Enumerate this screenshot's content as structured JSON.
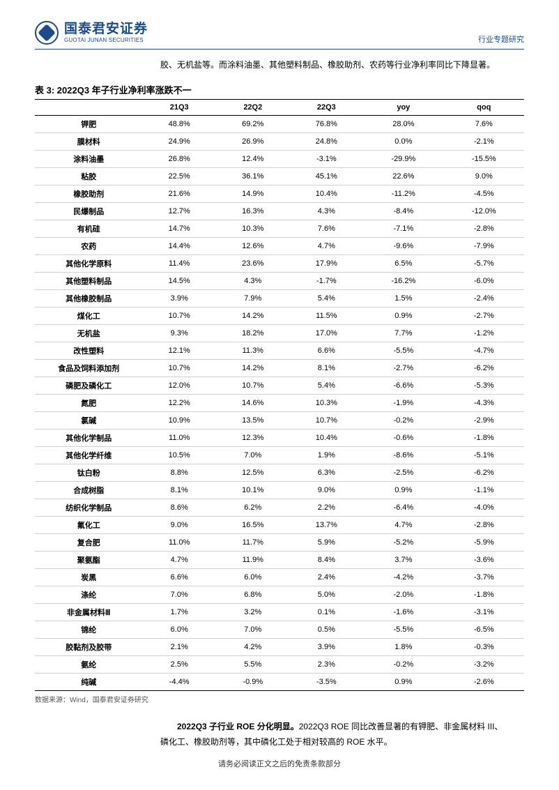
{
  "header": {
    "logo_cn": "国泰君安证券",
    "logo_en": "GUOTAI JUNAN SECURITIES",
    "doc_type": "行业专题研究"
  },
  "intro": "胶、无机盐等。而涂料油墨、其他塑料制品、橡胶助剂、农药等行业净利率同比下降显著。",
  "table": {
    "title": "表 3:  2022Q3 年子行业净利率涨跌不一",
    "columns": [
      "",
      "21Q3",
      "22Q2",
      "22Q3",
      "yoy",
      "qoq"
    ],
    "rows": [
      [
        "钾肥",
        "48.8%",
        "69.2%",
        "76.8%",
        "28.0%",
        "7.6%"
      ],
      [
        "膜材料",
        "24.9%",
        "26.9%",
        "24.8%",
        "0.0%",
        "-2.1%"
      ],
      [
        "涂料油墨",
        "26.8%",
        "12.4%",
        "-3.1%",
        "-29.9%",
        "-15.5%"
      ],
      [
        "粘胶",
        "22.5%",
        "36.1%",
        "45.1%",
        "22.6%",
        "9.0%"
      ],
      [
        "橡胶助剂",
        "21.6%",
        "14.9%",
        "10.4%",
        "-11.2%",
        "-4.5%"
      ],
      [
        "民爆制品",
        "12.7%",
        "16.3%",
        "4.3%",
        "-8.4%",
        "-12.0%"
      ],
      [
        "有机硅",
        "14.7%",
        "10.3%",
        "7.6%",
        "-7.1%",
        "-2.8%"
      ],
      [
        "农药",
        "14.4%",
        "12.6%",
        "4.7%",
        "-9.6%",
        "-7.9%"
      ],
      [
        "其他化学原料",
        "11.4%",
        "23.6%",
        "17.9%",
        "6.5%",
        "-5.7%"
      ],
      [
        "其他塑料制品",
        "14.5%",
        "4.3%",
        "-1.7%",
        "-16.2%",
        "-6.0%"
      ],
      [
        "其他橡胶制品",
        "3.9%",
        "7.9%",
        "5.4%",
        "1.5%",
        "-2.4%"
      ],
      [
        "煤化工",
        "10.7%",
        "14.2%",
        "11.5%",
        "0.9%",
        "-2.7%"
      ],
      [
        "无机盐",
        "9.3%",
        "18.2%",
        "17.0%",
        "7.7%",
        "-1.2%"
      ],
      [
        "改性塑料",
        "12.1%",
        "11.3%",
        "6.6%",
        "-5.5%",
        "-4.7%"
      ],
      [
        "食品及饲料添加剂",
        "10.7%",
        "14.2%",
        "8.1%",
        "-2.7%",
        "-6.2%"
      ],
      [
        "磷肥及磷化工",
        "12.0%",
        "10.7%",
        "5.4%",
        "-6.6%",
        "-5.3%"
      ],
      [
        "氮肥",
        "12.2%",
        "14.6%",
        "10.3%",
        "-1.9%",
        "-4.3%"
      ],
      [
        "氯碱",
        "10.9%",
        "13.5%",
        "10.7%",
        "-0.2%",
        "-2.9%"
      ],
      [
        "其他化学制品",
        "11.0%",
        "12.3%",
        "10.4%",
        "-0.6%",
        "-1.8%"
      ],
      [
        "其他化学纤维",
        "10.5%",
        "7.0%",
        "1.9%",
        "-8.6%",
        "-5.1%"
      ],
      [
        "钛白粉",
        "8.8%",
        "12.5%",
        "6.3%",
        "-2.5%",
        "-6.2%"
      ],
      [
        "合成树脂",
        "8.1%",
        "10.1%",
        "9.0%",
        "0.9%",
        "-1.1%"
      ],
      [
        "纺织化学制品",
        "8.6%",
        "6.2%",
        "2.2%",
        "-6.4%",
        "-4.0%"
      ],
      [
        "氟化工",
        "9.0%",
        "16.5%",
        "13.7%",
        "4.7%",
        "-2.8%"
      ],
      [
        "复合肥",
        "11.0%",
        "11.7%",
        "5.9%",
        "-5.2%",
        "-5.9%"
      ],
      [
        "聚氨酯",
        "4.7%",
        "11.9%",
        "8.4%",
        "3.7%",
        "-3.6%"
      ],
      [
        "炭黑",
        "6.6%",
        "6.0%",
        "2.4%",
        "-4.2%",
        "-3.7%"
      ],
      [
        "涤纶",
        "7.0%",
        "6.8%",
        "5.0%",
        "-2.0%",
        "-1.8%"
      ],
      [
        "非金属材料Ⅲ",
        "1.7%",
        "3.2%",
        "0.1%",
        "-1.6%",
        "-3.1%"
      ],
      [
        "锦纶",
        "6.0%",
        "7.0%",
        "0.5%",
        "-5.5%",
        "-6.5%"
      ],
      [
        "胶黏剂及胶带",
        "2.1%",
        "4.2%",
        "3.9%",
        "1.8%",
        "-0.3%"
      ],
      [
        "氨纶",
        "2.5%",
        "5.5%",
        "2.3%",
        "-0.2%",
        "-3.2%"
      ],
      [
        "纯碱",
        "-4.4%",
        "-0.9%",
        "-3.5%",
        "0.9%",
        "-2.6%"
      ]
    ],
    "source": "数据来源：Wind，国泰君安证券研究"
  },
  "body": {
    "bold": "2022Q3 子行业 ROE 分化明显。",
    "rest": "2022Q3 ROE 同比改善显著的有钾肥、非金属材料 III、磷化工、橡胶助剂等，其中磷化工处于相对较高的 ROE 水平。"
  },
  "footer": "请务必阅读正文之后的免责条款部分"
}
